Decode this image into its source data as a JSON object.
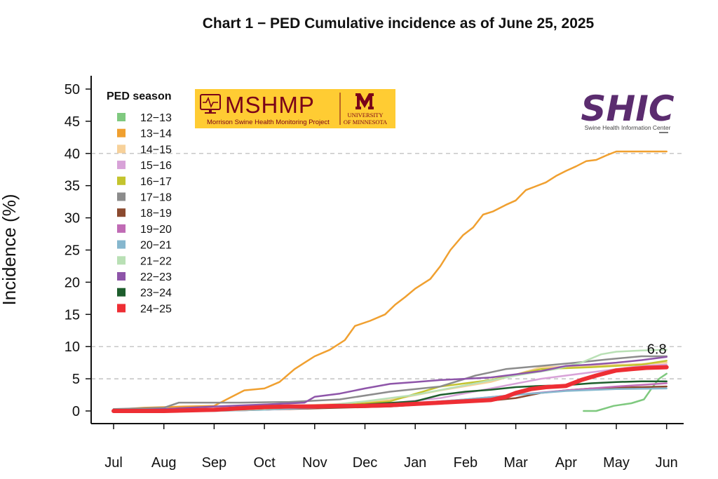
{
  "chart_data": {
    "type": "line",
    "title": "Chart 1 − PED Cumulative incidence as of June 25, 2025",
    "xlabel": "",
    "ylabel": "Incidence (%)",
    "ylim": [
      0,
      50
    ],
    "yticks": [
      0,
      5,
      10,
      15,
      20,
      25,
      30,
      35,
      40,
      45,
      50
    ],
    "x_ticks": [
      "Jul",
      "Aug",
      "Sep",
      "Oct",
      "Nov",
      "Dec",
      "Jan",
      "Feb",
      "Mar",
      "Apr",
      "May",
      "Jun"
    ],
    "x_unit": "months since July 1 (0 = Jul, 11 = Jun)",
    "ref_lines": [
      5,
      10,
      40
    ],
    "grid": false,
    "legend": {
      "title": "PED season",
      "position": "top-left"
    },
    "annotation": {
      "text": "6.8",
      "x": 11.0,
      "y": 6.8
    },
    "series": [
      {
        "name": "12−13",
        "color": "#7fc97f",
        "width": 2.5,
        "values": [
          [
            9.35,
            0
          ],
          [
            9.6,
            0
          ],
          [
            9.95,
            0.8
          ],
          [
            10.3,
            1.2
          ],
          [
            10.55,
            1.8
          ],
          [
            10.7,
            3.5
          ],
          [
            10.85,
            5
          ],
          [
            11.0,
            5.8
          ]
        ]
      },
      {
        "name": "13−14",
        "color": "#f0a030",
        "width": 2.5,
        "values": [
          [
            0,
            0.2
          ],
          [
            0.6,
            0.5
          ],
          [
            1.4,
            0.7
          ],
          [
            2.0,
            0.8
          ],
          [
            2.3,
            2.0
          ],
          [
            2.6,
            3.2
          ],
          [
            3.0,
            3.5
          ],
          [
            3.3,
            4.5
          ],
          [
            3.6,
            6.5
          ],
          [
            3.8,
            7.5
          ],
          [
            4.0,
            8.5
          ],
          [
            4.3,
            9.5
          ],
          [
            4.6,
            11.0
          ],
          [
            4.8,
            13.2
          ],
          [
            5.1,
            14.0
          ],
          [
            5.4,
            15.0
          ],
          [
            5.6,
            16.5
          ],
          [
            5.8,
            17.7
          ],
          [
            6.0,
            19.0
          ],
          [
            6.3,
            20.5
          ],
          [
            6.5,
            22.5
          ],
          [
            6.7,
            25.0
          ],
          [
            6.95,
            27.3
          ],
          [
            7.15,
            28.5
          ],
          [
            7.35,
            30.5
          ],
          [
            7.55,
            31.0
          ],
          [
            7.8,
            32.0
          ],
          [
            8.0,
            32.7
          ],
          [
            8.2,
            34.3
          ],
          [
            8.6,
            35.5
          ],
          [
            8.8,
            36.5
          ],
          [
            9.0,
            37.3
          ],
          [
            9.2,
            38.0
          ],
          [
            9.4,
            38.8
          ],
          [
            9.6,
            39.0
          ],
          [
            9.8,
            39.7
          ],
          [
            10.0,
            40.3
          ],
          [
            11.0,
            40.3
          ]
        ]
      },
      {
        "name": "14−15",
        "color": "#f7d19a",
        "width": 2.5,
        "values": [
          [
            0,
            0
          ],
          [
            1.5,
            0
          ],
          [
            2.5,
            0.3
          ],
          [
            3.5,
            0.8
          ],
          [
            4.5,
            1.1
          ],
          [
            5.5,
            1.7
          ],
          [
            6.5,
            3.2
          ],
          [
            7.5,
            4.5
          ],
          [
            8.5,
            6.8
          ],
          [
            9.5,
            7.0
          ],
          [
            10.5,
            7.3
          ],
          [
            11.0,
            7.5
          ]
        ]
      },
      {
        "name": "15−16",
        "color": "#d8a2d8",
        "width": 2.5,
        "values": [
          [
            0,
            0
          ],
          [
            1.5,
            0
          ],
          [
            2.5,
            0.2
          ],
          [
            3.5,
            0.5
          ],
          [
            4.5,
            0.8
          ],
          [
            5.5,
            1.2
          ],
          [
            6.5,
            2.0
          ],
          [
            7.5,
            3.5
          ],
          [
            8.5,
            5.0
          ],
          [
            9.5,
            6.0
          ],
          [
            10.5,
            7.0
          ],
          [
            11.0,
            7.2
          ]
        ]
      },
      {
        "name": "16−17",
        "color": "#c4c42e",
        "width": 2.5,
        "values": [
          [
            0,
            0
          ],
          [
            1.5,
            0.1
          ],
          [
            2.5,
            0.3
          ],
          [
            3.5,
            0.6
          ],
          [
            4.5,
            0.9
          ],
          [
            5.5,
            1.5
          ],
          [
            6.5,
            3.8
          ],
          [
            7.5,
            4.8
          ],
          [
            8.5,
            6.5
          ],
          [
            9.5,
            6.8
          ],
          [
            10.5,
            7.2
          ],
          [
            11.0,
            7.8
          ]
        ]
      },
      {
        "name": "17−18",
        "color": "#8c8c8c",
        "width": 2.5,
        "values": [
          [
            0,
            0.3
          ],
          [
            1.0,
            0.5
          ],
          [
            1.3,
            1.3
          ],
          [
            2.5,
            1.3
          ],
          [
            3.5,
            1.4
          ],
          [
            4.5,
            1.8
          ],
          [
            5.5,
            3.0
          ],
          [
            6.5,
            3.8
          ],
          [
            7.2,
            5.5
          ],
          [
            7.8,
            6.5
          ],
          [
            8.5,
            7.0
          ],
          [
            9.2,
            7.5
          ],
          [
            9.8,
            8.0
          ],
          [
            10.5,
            8.5
          ],
          [
            11.0,
            8.5
          ]
        ]
      },
      {
        "name": "18−19",
        "color": "#8b4a2f",
        "width": 2.5,
        "values": [
          [
            0,
            0
          ],
          [
            1.5,
            0
          ],
          [
            2.5,
            0.1
          ],
          [
            3.5,
            0.3
          ],
          [
            4.5,
            0.5
          ],
          [
            5.5,
            0.7
          ],
          [
            6.5,
            1.2
          ],
          [
            7.5,
            1.6
          ],
          [
            8.0,
            2.0
          ],
          [
            8.5,
            2.8
          ],
          [
            9.0,
            3.2
          ],
          [
            9.5,
            3.5
          ],
          [
            10.5,
            3.7
          ],
          [
            11.0,
            3.8
          ]
        ]
      },
      {
        "name": "19−20",
        "color": "#c06bb5",
        "width": 2.5,
        "values": [
          [
            0,
            0
          ],
          [
            2.0,
            0
          ],
          [
            3.0,
            0.2
          ],
          [
            4.0,
            0.5
          ],
          [
            5.0,
            0.8
          ],
          [
            6.0,
            1.2
          ],
          [
            7.0,
            1.8
          ],
          [
            8.0,
            2.5
          ],
          [
            9.0,
            3.2
          ],
          [
            10.0,
            3.8
          ],
          [
            11.0,
            4.3
          ]
        ]
      },
      {
        "name": "20−21",
        "color": "#86b7ce",
        "width": 2.5,
        "values": [
          [
            0,
            0
          ],
          [
            2.0,
            0
          ],
          [
            3.0,
            0.2
          ],
          [
            4.0,
            0.5
          ],
          [
            5.0,
            0.8
          ],
          [
            6.0,
            1.2
          ],
          [
            7.0,
            1.8
          ],
          [
            8.0,
            2.5
          ],
          [
            9.0,
            3.1
          ],
          [
            10.0,
            3.4
          ],
          [
            11.0,
            3.5
          ]
        ]
      },
      {
        "name": "21−22",
        "color": "#b9e0b5",
        "width": 2.5,
        "values": [
          [
            0,
            0
          ],
          [
            2.0,
            0
          ],
          [
            3.0,
            0.3
          ],
          [
            4.0,
            0.7
          ],
          [
            5.0,
            1.5
          ],
          [
            6.0,
            2.5
          ],
          [
            7.0,
            4.0
          ],
          [
            8.0,
            5.5
          ],
          [
            8.8,
            6.5
          ],
          [
            9.3,
            7.5
          ],
          [
            9.7,
            8.8
          ],
          [
            10.0,
            9.2
          ],
          [
            10.5,
            9.4
          ],
          [
            11.0,
            9.5
          ]
        ]
      },
      {
        "name": "22−23",
        "color": "#8e55a9",
        "width": 2.5,
        "values": [
          [
            0,
            0
          ],
          [
            1.0,
            0.3
          ],
          [
            2.0,
            0.7
          ],
          [
            3.0,
            1.0
          ],
          [
            3.8,
            1.3
          ],
          [
            4.0,
            2.2
          ],
          [
            4.5,
            2.7
          ],
          [
            5.0,
            3.5
          ],
          [
            5.5,
            4.2
          ],
          [
            6.0,
            4.5
          ],
          [
            6.5,
            4.8
          ],
          [
            7.0,
            5.0
          ],
          [
            7.5,
            5.2
          ],
          [
            8.0,
            5.7
          ],
          [
            8.5,
            6.2
          ],
          [
            9.0,
            7.0
          ],
          [
            9.5,
            7.2
          ],
          [
            10.0,
            7.5
          ],
          [
            10.5,
            7.9
          ],
          [
            11.0,
            8.4
          ]
        ]
      },
      {
        "name": "23−24",
        "color": "#1e5e2d",
        "width": 2.5,
        "values": [
          [
            0,
            0
          ],
          [
            2.0,
            0.1
          ],
          [
            3.0,
            0.4
          ],
          [
            4.0,
            0.7
          ],
          [
            5.0,
            1.0
          ],
          [
            6.0,
            1.5
          ],
          [
            6.5,
            2.5
          ],
          [
            7.0,
            3.0
          ],
          [
            7.5,
            3.3
          ],
          [
            8.0,
            3.7
          ],
          [
            8.5,
            3.9
          ],
          [
            9.0,
            4.0
          ],
          [
            9.5,
            4.3
          ],
          [
            10.0,
            4.5
          ],
          [
            10.5,
            4.6
          ],
          [
            11.0,
            4.6
          ]
        ]
      },
      {
        "name": "24−25",
        "color": "#ee2e34",
        "width": 6,
        "values": [
          [
            0,
            0
          ],
          [
            1.0,
            0
          ],
          [
            1.5,
            0.1
          ],
          [
            2.0,
            0.2
          ],
          [
            2.5,
            0.4
          ],
          [
            3.0,
            0.6
          ],
          [
            3.5,
            0.7
          ],
          [
            4.0,
            0.7
          ],
          [
            4.5,
            0.8
          ],
          [
            5.0,
            0.8
          ],
          [
            5.5,
            0.9
          ],
          [
            6.0,
            1.1
          ],
          [
            6.5,
            1.3
          ],
          [
            7.0,
            1.5
          ],
          [
            7.5,
            1.7
          ],
          [
            7.8,
            2.2
          ],
          [
            8.0,
            2.8
          ],
          [
            8.3,
            3.4
          ],
          [
            8.6,
            3.7
          ],
          [
            9.0,
            3.9
          ],
          [
            9.3,
            4.8
          ],
          [
            9.6,
            5.5
          ],
          [
            9.8,
            5.9
          ],
          [
            10.0,
            6.3
          ],
          [
            10.3,
            6.5
          ],
          [
            10.6,
            6.7
          ],
          [
            11.0,
            6.8
          ]
        ]
      }
    ]
  },
  "logo_mshmp": {
    "name": "MSHMP",
    "subtitle": "Morrison Swine Health Monitoring Project",
    "univ_line1": "UNIVERSITY",
    "univ_line2": "OF MINNESOTA",
    "colors": {
      "background": "#ffcc33",
      "text": "#7a0019"
    }
  },
  "logo_shic": {
    "name": "SHIC",
    "subtitle": "Swine Health Information Center",
    "colors": {
      "text": "#5b2c6f"
    }
  }
}
